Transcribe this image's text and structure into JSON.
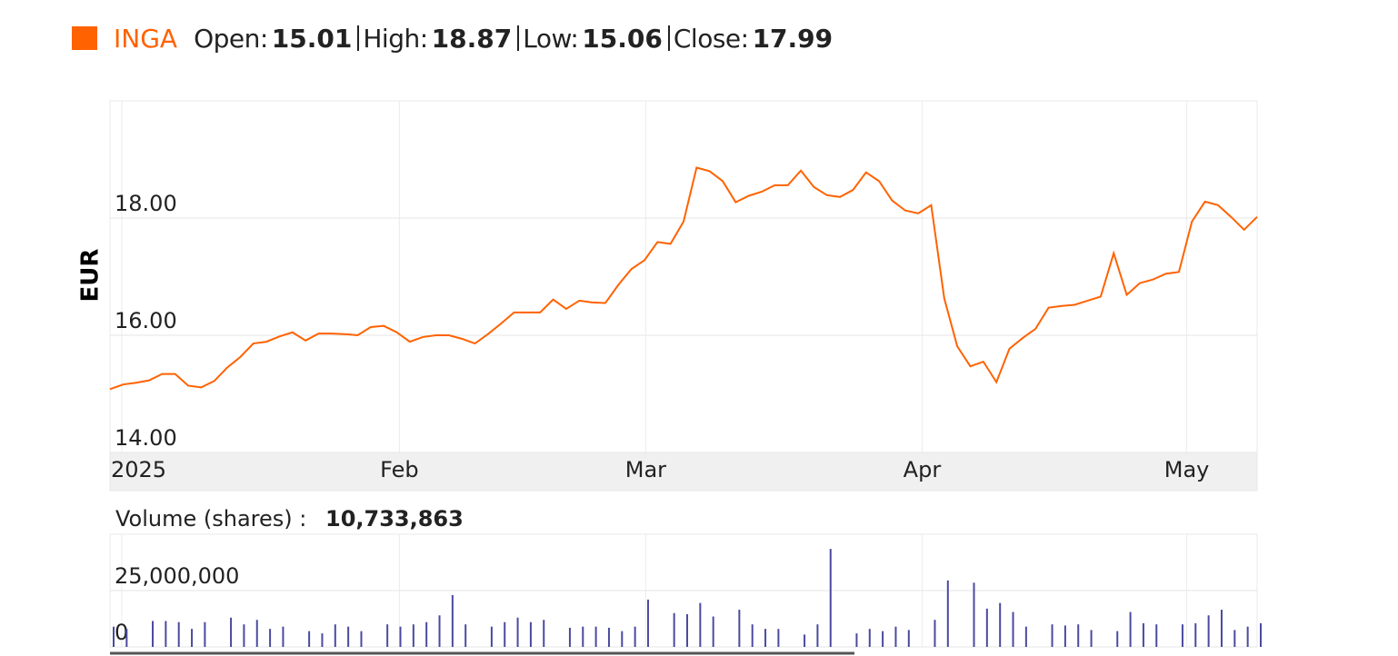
{
  "header": {
    "open_label": "Open:",
    "open": "15.01",
    "high_label": "High:",
    "high": "18.87",
    "low_label": "Low:",
    "low": "15.06",
    "close_label": "Close:",
    "close": "17.99"
  },
  "chart_data": [
    {
      "type": "line",
      "ylabel": "EUR",
      "series": [
        {
          "name": "INGA",
          "color": "#ff6200",
          "values": [
            15.08,
            15.16,
            15.19,
            15.23,
            15.34,
            15.34,
            15.14,
            15.11,
            15.22,
            15.45,
            15.63,
            15.86,
            15.89,
            15.98,
            16.05,
            15.91,
            16.03,
            16.03,
            16.02,
            16.0,
            16.14,
            16.16,
            16.05,
            15.89,
            15.97,
            16.0,
            16.0,
            15.94,
            15.86,
            16.02,
            16.2,
            16.39,
            16.39,
            16.39,
            16.61,
            16.45,
            16.59,
            16.56,
            16.55,
            16.86,
            17.13,
            17.28,
            17.59,
            17.56,
            17.94,
            18.86,
            18.8,
            18.63,
            18.27,
            18.38,
            18.45,
            18.56,
            18.56,
            18.81,
            18.53,
            18.39,
            18.36,
            18.48,
            18.78,
            18.63,
            18.3,
            18.13,
            18.08,
            18.22,
            16.63,
            15.81,
            15.47,
            15.55,
            15.2,
            15.77,
            15.95,
            16.11,
            16.47,
            16.5,
            16.52,
            16.59,
            16.66,
            17.4,
            16.69,
            16.89,
            16.95,
            17.05,
            17.08,
            17.94,
            18.28,
            18.22,
            18.02,
            17.8,
            18.02
          ]
        }
      ],
      "xlim": [
        0,
        88
      ],
      "xticks": [
        {
          "value": 0.9,
          "label": "2025"
        },
        {
          "value": 22.2,
          "label": "Feb"
        },
        {
          "value": 41.1,
          "label": "Mar"
        },
        {
          "value": 62.3,
          "label": "Apr"
        },
        {
          "value": 82.6,
          "label": "May"
        }
      ],
      "ylim": [
        14,
        20
      ],
      "yticks": [
        {
          "value": 14,
          "label": "14.00"
        },
        {
          "value": 16,
          "label": "16.00"
        },
        {
          "value": 18,
          "label": "18.00"
        }
      ],
      "grid": true
    },
    {
      "type": "bar",
      "title": "Volume (shares) :",
      "summary": "10,733,863",
      "color": "#4a4aa0",
      "values": [
        9000000,
        8000000,
        0,
        11500000,
        11500000,
        11000000,
        8000000,
        11000000,
        0,
        13000000,
        10000000,
        12000000,
        8000000,
        9000000,
        0,
        7000000,
        6000000,
        10000000,
        9000000,
        7000000,
        0,
        10000000,
        9000000,
        10000000,
        11000000,
        14000000,
        23000000,
        10000000,
        0,
        9000000,
        11000000,
        13000000,
        11000000,
        12000000,
        0,
        8500000,
        9000000,
        9000000,
        8500000,
        7000000,
        9000000,
        21000000,
        0,
        15000000,
        14500000,
        19500000,
        13500000,
        0,
        16500000,
        10000000,
        8000000,
        8000000,
        0,
        5500000,
        10000000,
        43500000,
        0,
        6000000,
        8000000,
        7000000,
        9000000,
        7500000,
        0,
        12000000,
        29500000,
        0,
        28500000,
        17000000,
        19500000,
        15500000,
        9000000,
        0,
        10000000,
        9500000,
        10000000,
        7500000,
        0,
        7000000,
        15500000,
        10500000,
        10000000,
        0,
        10000000,
        10500000,
        14000000,
        16500000,
        7500000,
        9000000,
        10500000
      ],
      "ylim": [
        0,
        50000000
      ],
      "yticks": [
        0,
        {
          "value": 25000000,
          "label": "25,000,000"
        }
      ],
      "grid": true
    }
  ]
}
